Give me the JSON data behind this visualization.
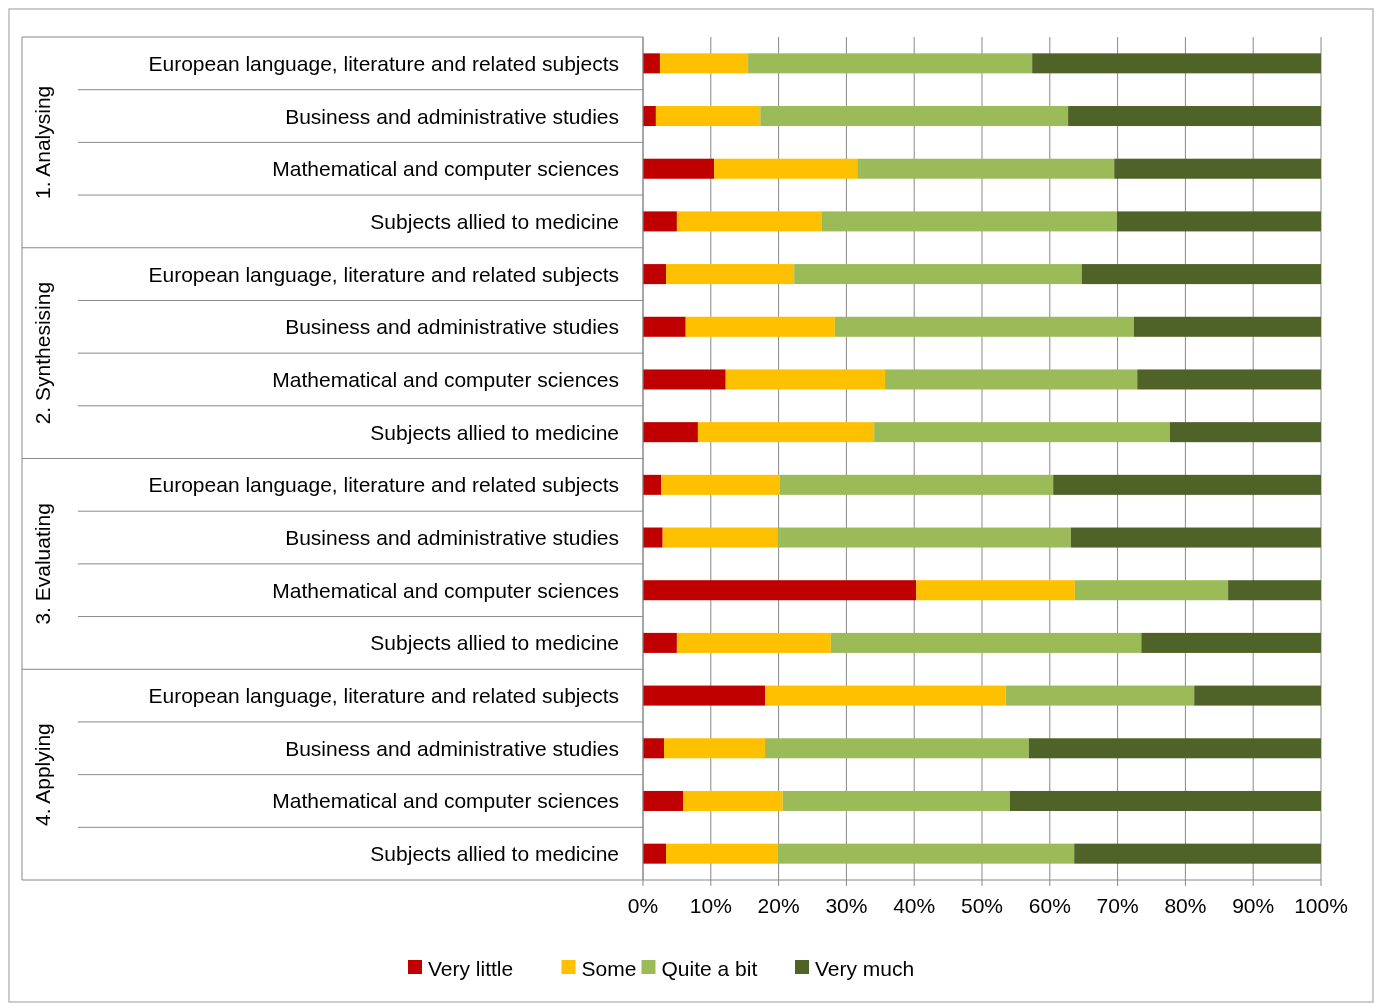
{
  "chart_data": {
    "type": "bar",
    "orientation": "horizontal",
    "stacked": true,
    "categories": [
      "European language, literature and related subjects",
      "Business and administrative studies",
      "Mathematical and computer sciences",
      "Subjects allied to medicine",
      "European language, literature and related subjects",
      "Business and administrative studies",
      "Mathematical and computer sciences",
      "Subjects allied to medicine",
      "European language, literature and related subjects",
      "Business and administrative studies",
      "Mathematical and computer sciences",
      "Subjects allied to medicine",
      "European language, literature and related subjects",
      "Business and administrative studies",
      "Mathematical and computer sciences",
      "Subjects allied to medicine"
    ],
    "annotations": [
      "1. Analysing",
      "2. Synthesising",
      "3. Evaluating",
      "4. Applying"
    ],
    "series": [
      {
        "name": "Very little",
        "color": "#c00000",
        "values": [
          2.5,
          1.9,
          10.5,
          5.0,
          3.4,
          6.3,
          12.2,
          8.1,
          2.7,
          2.9,
          40.3,
          5.0,
          18.0,
          3.1,
          5.9,
          3.4
        ]
      },
      {
        "name": "Some",
        "color": "#ffc000",
        "values": [
          13.0,
          15.4,
          21.1,
          21.4,
          18.9,
          22.0,
          23.5,
          26.0,
          17.5,
          16.9,
          23.4,
          22.7,
          35.5,
          14.9,
          14.7,
          16.5
        ]
      },
      {
        "name": "Quite a bit",
        "color": "#9bbb59",
        "values": [
          41.9,
          45.4,
          37.9,
          43.5,
          42.4,
          44.1,
          37.2,
          43.6,
          40.3,
          43.3,
          22.6,
          45.8,
          27.8,
          38.9,
          33.5,
          43.7
        ]
      },
      {
        "name": "Very much",
        "color": "#4f6228",
        "values": [
          42.6,
          37.3,
          30.5,
          30.1,
          35.3,
          27.6,
          27.1,
          22.3,
          39.5,
          36.9,
          13.7,
          26.5,
          18.7,
          43.1,
          45.9,
          36.4
        ]
      }
    ],
    "xlim": [
      0,
      100
    ],
    "xticks": [
      {
        "value": 0,
        "label": "0%"
      },
      {
        "value": 10,
        "label": "10%"
      },
      {
        "value": 20,
        "label": "20%"
      },
      {
        "value": 30,
        "label": "30%"
      },
      {
        "value": 40,
        "label": "40%"
      },
      {
        "value": 50,
        "label": "50%"
      },
      {
        "value": 60,
        "label": "60%"
      },
      {
        "value": 70,
        "label": "70%"
      },
      {
        "value": 80,
        "label": "80%"
      },
      {
        "value": 90,
        "label": "90%"
      },
      {
        "value": 100,
        "label": "100%"
      }
    ],
    "grid": "x",
    "legend": "bottom"
  }
}
